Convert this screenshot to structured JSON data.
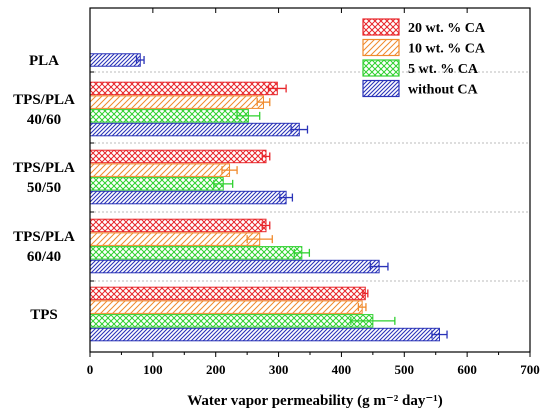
{
  "chart_data": {
    "type": "bar",
    "orientation": "horizontal",
    "xlabel": "Water vapor permeability (g m⁻² day⁻¹)",
    "xlim": [
      0,
      700
    ],
    "xticks": [
      0,
      100,
      200,
      300,
      400,
      500,
      600,
      700
    ],
    "categories": [
      {
        "lines": [
          "PLA"
        ]
      },
      {
        "lines": [
          "TPS/PLA",
          "40/60"
        ]
      },
      {
        "lines": [
          "TPS/PLA",
          "50/50"
        ]
      },
      {
        "lines": [
          "TPS/PLA",
          "60/40"
        ]
      },
      {
        "lines": [
          "TPS"
        ]
      }
    ],
    "series": [
      {
        "name": "20 wt. % CA",
        "color": "#e8262b",
        "pattern": "crosshatch",
        "values": [
          null,
          298,
          280,
          280,
          438
        ],
        "errors": [
          null,
          14,
          6,
          6,
          4
        ]
      },
      {
        "name": "10 wt. % CA",
        "color": "#f08a2c",
        "pattern": "forward-diagonal",
        "values": [
          null,
          276,
          222,
          270,
          433
        ],
        "errors": [
          null,
          10,
          12,
          20,
          6
        ]
      },
      {
        "name": "5 wt. % CA",
        "color": "#2fd12f",
        "pattern": "crosshatch",
        "values": [
          null,
          252,
          212,
          337,
          450
        ],
        "errors": [
          null,
          18,
          15,
          12,
          35
        ]
      },
      {
        "name": "without CA",
        "color": "#2a33b8",
        "pattern": "forward-diagonal-dense",
        "values": [
          80,
          333,
          312,
          460,
          556
        ],
        "errors": [
          6,
          13,
          10,
          14,
          12
        ]
      }
    ],
    "legend_position": "top-right",
    "grid": false,
    "group_separators": true
  }
}
